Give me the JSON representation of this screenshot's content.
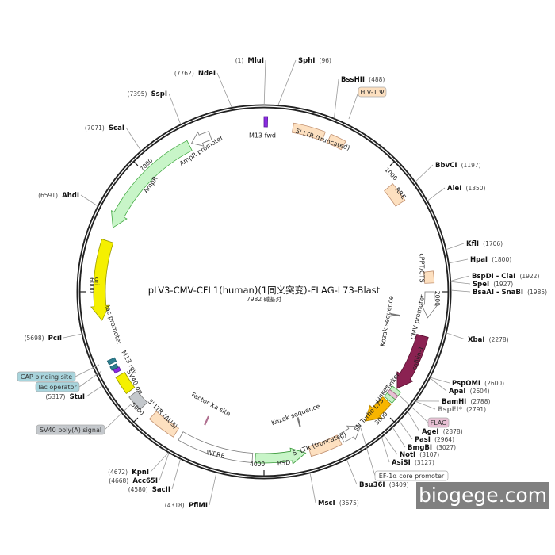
{
  "title": "pLV3-CMV-CFL1(human)(1同义突变)-FLAG-L73-Blast",
  "subtitle": "7982 碱基对",
  "sites": [
    {
      "name": "MluI",
      "pos": 1
    },
    {
      "name": "NdeI",
      "pos": 7762
    },
    {
      "name": "SspI",
      "pos": 7395
    },
    {
      "name": "ScaI",
      "pos": 7071
    },
    {
      "name": "AhdI",
      "pos": 6591
    },
    {
      "name": "PciI",
      "pos": 5698
    },
    {
      "name": "StuI",
      "pos": 5317
    },
    {
      "name": "KpnI",
      "pos": 4672
    },
    {
      "name": "Acc65I",
      "pos": 4668
    },
    {
      "name": "SacII",
      "pos": 4580
    },
    {
      "name": "PflMI",
      "pos": 4318
    },
    {
      "name": "SphI",
      "pos": 96
    },
    {
      "name": "BssHII",
      "pos": 488
    },
    {
      "name": "BbvCI",
      "pos": 1197
    },
    {
      "name": "AleI",
      "pos": 1350
    },
    {
      "name": "KflI",
      "pos": 1706
    },
    {
      "name": "HpaI",
      "pos": 1800
    },
    {
      "name": "BspDI - ClaI",
      "pos": 1922
    },
    {
      "name": "SpeI",
      "pos": 1927
    },
    {
      "name": "BsaAI - SnaBI",
      "pos": 1985
    },
    {
      "name": "XbaI",
      "pos": 2278
    },
    {
      "name": "PspOMI",
      "pos": 2600
    },
    {
      "name": "ApaI",
      "pos": 2604
    },
    {
      "name": "BamHI",
      "pos": 2788
    },
    {
      "name": "BspEI*",
      "pos": 2791
    },
    {
      "name": "AgeI",
      "pos": 2878
    },
    {
      "name": "PasI",
      "pos": 2964
    },
    {
      "name": "BmgBI",
      "pos": 3027
    },
    {
      "name": "NotI",
      "pos": 3107
    },
    {
      "name": "AsiSI",
      "pos": 3127
    },
    {
      "name": "Bsu36I",
      "pos": 3409
    },
    {
      "name": "MscI",
      "pos": 3675
    }
  ],
  "features": [
    {
      "name": "M13 fwd",
      "color": "#8a2be2"
    },
    {
      "name": "5' LTR (truncated)",
      "color": "#fde0c0"
    },
    {
      "name": "RRE",
      "color": "#fde0c0"
    },
    {
      "name": "cPPT/CTS",
      "color": "#fde0c0"
    },
    {
      "name": "CMV promoter",
      "color": "#ffffff"
    },
    {
      "name": "Kozak sequence",
      "color": "#777777"
    },
    {
      "name": "cofilin-1",
      "color": "#8b2252"
    },
    {
      "name": "Linker",
      "color": "#c8f0c8"
    },
    {
      "name": "linker",
      "color": "#c8f0c8"
    },
    {
      "name": "sN Turbo L73",
      "color": "#f7b500"
    },
    {
      "name": "Kozak sequence",
      "color": "#777777"
    },
    {
      "name": "5' LTR (truncated)",
      "color": "#fde0c0"
    },
    {
      "name": "BSD",
      "color": "#c8f5c8"
    },
    {
      "name": "WPRE",
      "color": "#ffffff"
    },
    {
      "name": "Factor Xa site",
      "color": "#b07090"
    },
    {
      "name": "3' LTR (ΔU3)",
      "color": "#fde0c0"
    },
    {
      "name": "SV40 ori",
      "color": "#f5f000"
    },
    {
      "name": "M13 rev",
      "color": "#8a2be2"
    },
    {
      "name": "lac promoter",
      "color": "#ffffff"
    },
    {
      "name": "ori",
      "color": "#f5f000"
    },
    {
      "name": "AmpR",
      "color": "#c8f5c8"
    },
    {
      "name": "AmpR promoter",
      "color": "#ffffff"
    }
  ],
  "callouts": [
    {
      "name": "HIV-1 Ψ",
      "color": "#fde0c0"
    },
    {
      "name": "FLAG",
      "color": "#e8c0d4"
    },
    {
      "name": "EF-1α core promoter",
      "color": "#ffffff"
    },
    {
      "name": "CAP binding site",
      "color": "#a8d4dc"
    },
    {
      "name": "lac operator",
      "color": "#a8d4dc"
    },
    {
      "name": "SV40 poly(A) signal",
      "color": "#c4c8cc"
    }
  ],
  "ticks": [
    "1000",
    "2000",
    "3000",
    "4000",
    "5000",
    "6000",
    "7000"
  ],
  "watermark": "biogege.com"
}
